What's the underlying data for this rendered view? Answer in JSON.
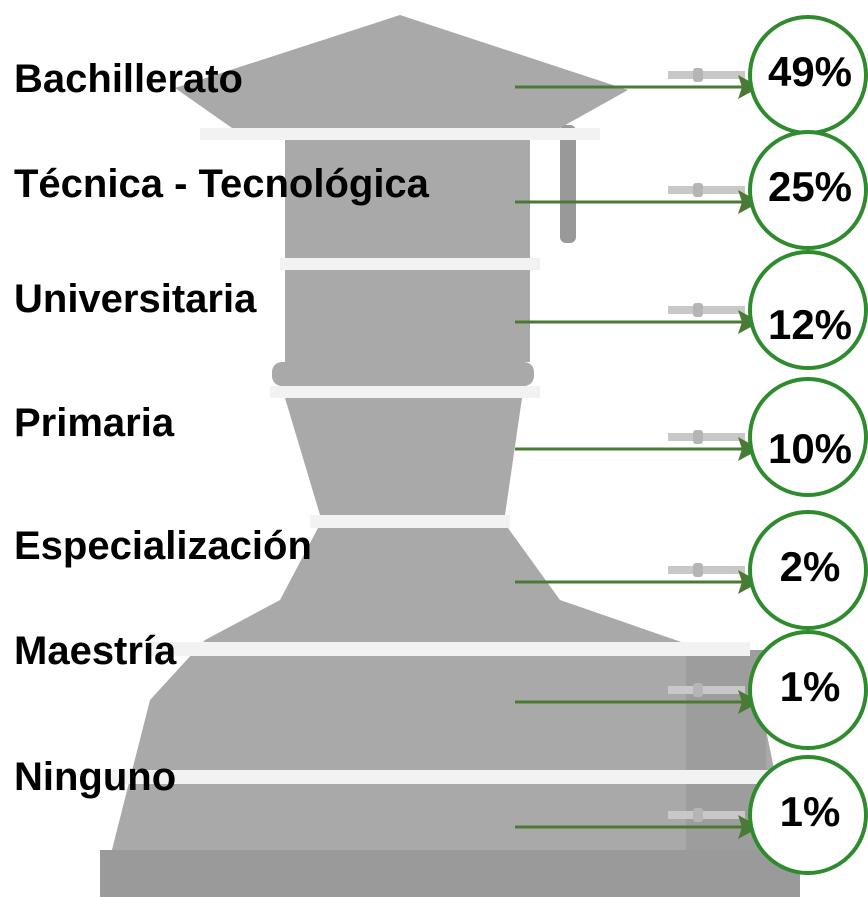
{
  "chart_data": {
    "type": "infographic",
    "categories": [
      "Bachillerato",
      "Técnica - Tecnológica",
      "Universitaria",
      "Primaria",
      "Especialización",
      "Maestría",
      "Ninguno"
    ],
    "values": [
      49,
      25,
      12,
      10,
      2,
      1,
      1
    ],
    "value_labels": [
      "49%",
      "25%",
      "12%",
      "10%",
      "2%",
      "1%",
      "1%"
    ],
    "color": "#2e8b2e"
  }
}
